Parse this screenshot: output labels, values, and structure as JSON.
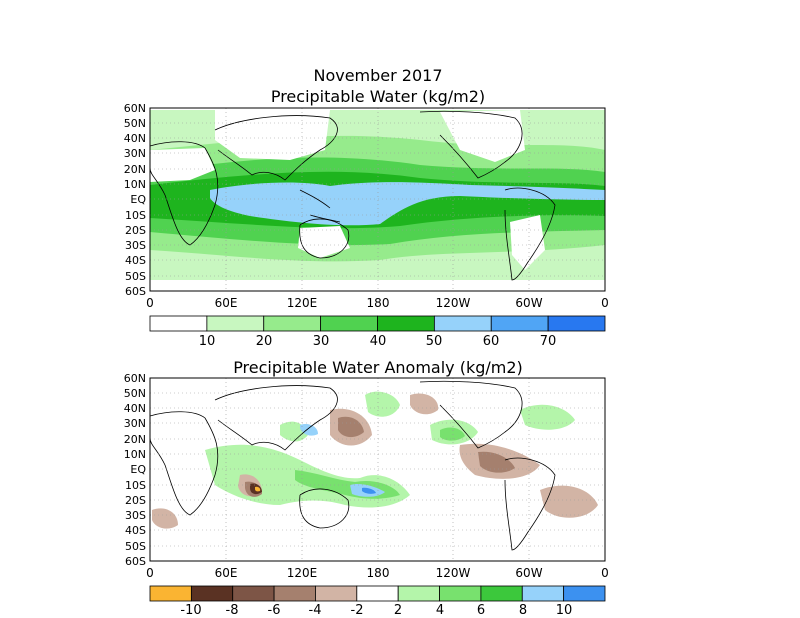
{
  "title": {
    "line1": "November 2017",
    "line2": "Precipitable Water (kg/m2)"
  },
  "anomaly_title": "Precipitable Water Anomaly (kg/m2)",
  "latitude_labels": [
    "60N",
    "50N",
    "40N",
    "30N",
    "20N",
    "10N",
    "EQ",
    "10S",
    "20S",
    "30S",
    "40S",
    "50S",
    "60S"
  ],
  "longitude_labels": [
    "0",
    "60E",
    "120E",
    "180",
    "120W",
    "60W",
    "0"
  ],
  "pw_colorbar": {
    "colors": [
      "#ffffff",
      "#c8f7c0",
      "#96eb8c",
      "#50d250",
      "#1eb41e",
      "#96d2fa",
      "#50a5f5",
      "#2878f0"
    ],
    "labels": [
      "10",
      "20",
      "30",
      "40",
      "50",
      "60",
      "70"
    ]
  },
  "anomaly_colorbar": {
    "colors": [
      "#fab432",
      "#5a3223",
      "#7d5546",
      "#a5806e",
      "#d2b4a5",
      "#ffffff",
      "#b4f5aa",
      "#78e16e",
      "#3cc83c",
      "#96d2fa",
      "#3c91f0"
    ],
    "labels": [
      "-10",
      "-8",
      "-6",
      "-4",
      "-2",
      "2",
      "4",
      "6",
      "8",
      "10"
    ]
  }
}
